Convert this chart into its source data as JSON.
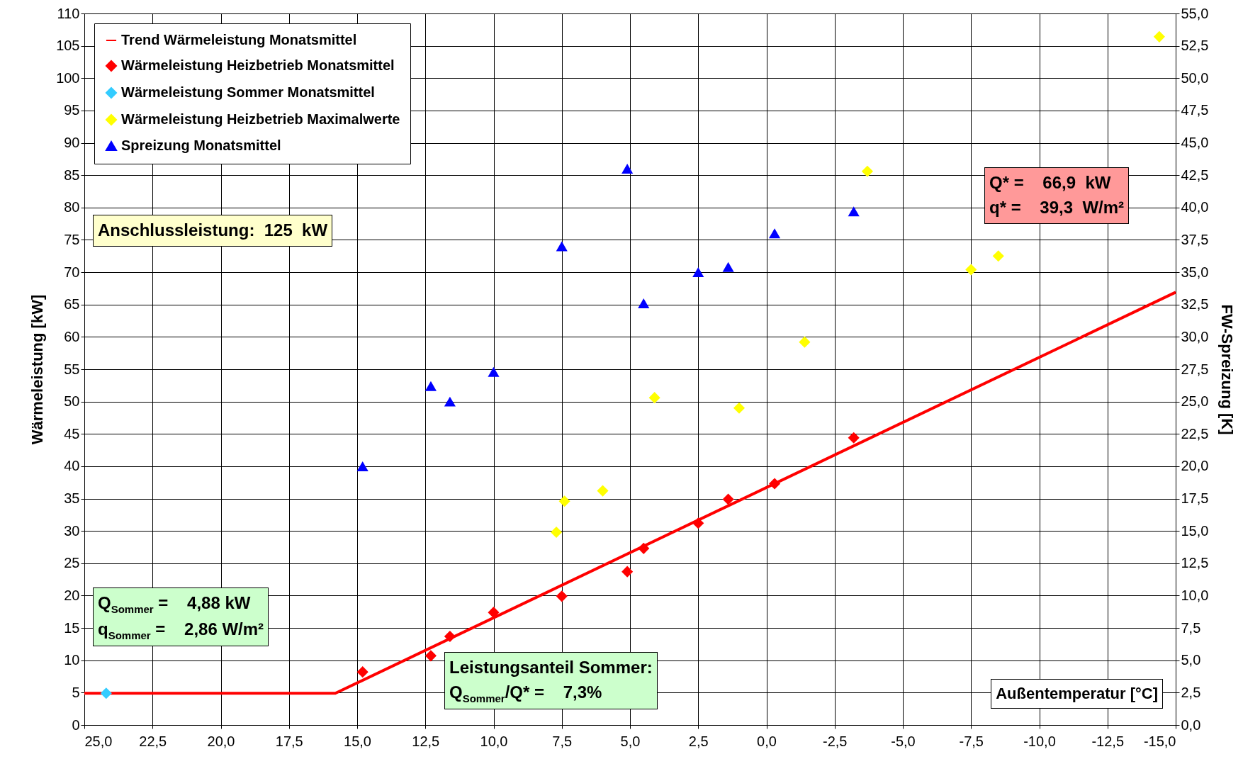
{
  "chart_data": {
    "type": "scatter",
    "xlabel": "Außentemperatur [°C]",
    "ylabel": "Wärmeleistung [kW]",
    "y2label": "FW-Spreizung [K]",
    "xlim": [
      25,
      -15
    ],
    "xticks": [
      {
        "value": 25,
        "label": "25,0"
      },
      {
        "value": 22.5,
        "label": "22,5"
      },
      {
        "value": 20,
        "label": "20,0"
      },
      {
        "value": 17.5,
        "label": "17,5"
      },
      {
        "value": 15,
        "label": "15,0"
      },
      {
        "value": 12.5,
        "label": "12,5"
      },
      {
        "value": 10,
        "label": "10,0"
      },
      {
        "value": 7.5,
        "label": "7,5"
      },
      {
        "value": 5,
        "label": "5,0"
      },
      {
        "value": 2.5,
        "label": "2,5"
      },
      {
        "value": 0,
        "label": "0,0"
      },
      {
        "value": -2.5,
        "label": "-2,5"
      },
      {
        "value": -5,
        "label": "-5,0"
      },
      {
        "value": -7.5,
        "label": "-7,5"
      },
      {
        "value": -10,
        "label": "-10,0"
      },
      {
        "value": -12.5,
        "label": "-12,5"
      },
      {
        "value": -15,
        "label": "-15,0"
      }
    ],
    "ylim": [
      0,
      110
    ],
    "yticks": [
      0,
      5,
      10,
      15,
      20,
      25,
      30,
      35,
      40,
      45,
      50,
      55,
      60,
      65,
      70,
      75,
      80,
      85,
      90,
      95,
      100,
      105,
      110
    ],
    "y2lim": [
      0,
      55
    ],
    "y2ticks": [
      {
        "value": 0,
        "label": "0,0"
      },
      {
        "value": 2.5,
        "label": "2,5"
      },
      {
        "value": 5,
        "label": "5,0"
      },
      {
        "value": 7.5,
        "label": "7,5"
      },
      {
        "value": 10,
        "label": "10,0"
      },
      {
        "value": 12.5,
        "label": "12,5"
      },
      {
        "value": 15,
        "label": "15,0"
      },
      {
        "value": 17.5,
        "label": "17,5"
      },
      {
        "value": 20,
        "label": "20,0"
      },
      {
        "value": 22.5,
        "label": "22,5"
      },
      {
        "value": 25,
        "label": "25,0"
      },
      {
        "value": 27.5,
        "label": "27,5"
      },
      {
        "value": 30,
        "label": "30,0"
      },
      {
        "value": 32.5,
        "label": "32,5"
      },
      {
        "value": 35,
        "label": "35,0"
      },
      {
        "value": 37.5,
        "label": "37,5"
      },
      {
        "value": 40,
        "label": "40,0"
      },
      {
        "value": 42.5,
        "label": "42,5"
      },
      {
        "value": 45,
        "label": "45,0"
      },
      {
        "value": 47.5,
        "label": "47,5"
      },
      {
        "value": 50,
        "label": "50,0"
      },
      {
        "value": 52.5,
        "label": "52,5"
      },
      {
        "value": 55,
        "label": "55,0"
      }
    ],
    "grid": true,
    "legend": "top left",
    "series": [
      {
        "name": "Trend Wärmeleistung Monatsmittel",
        "type": "line",
        "color": "#ff0000",
        "x": [
          25,
          15.8,
          -15
        ],
        "values": [
          4.9,
          4.9,
          66.9
        ]
      },
      {
        "name": "Wärmeleistung Heizbetrieb Monatsmittel",
        "marker": "diamond",
        "color": "#ff0000",
        "x": [
          14.8,
          12.3,
          11.6,
          10.0,
          7.5,
          5.1,
          4.5,
          2.5,
          1.4,
          -0.3,
          -3.2
        ],
        "values": [
          8.2,
          10.7,
          13.7,
          17.4,
          19.9,
          23.7,
          27.3,
          31.2,
          34.9,
          37.3,
          44.4
        ]
      },
      {
        "name": "Wärmeleistung Sommer Monatsmittel",
        "marker": "diamond",
        "color": "#33ccff",
        "x": [
          24.2
        ],
        "values": [
          4.9
        ]
      },
      {
        "name": "Wärmeleistung Heizbetrieb Maximalwerte",
        "marker": "diamond",
        "color": "#ffff00",
        "x": [
          7.7,
          7.4,
          6.0,
          4.1,
          1.0,
          -1.4,
          -3.7,
          -7.5,
          -8.5,
          -14.4
        ],
        "values": [
          29.8,
          34.6,
          36.2,
          50.6,
          49.0,
          59.2,
          85.6,
          70.4,
          72.5,
          106.4
        ]
      },
      {
        "name": "Spreizung Monatsmittel",
        "marker": "triangle",
        "color": "#0000ff",
        "axis": "y2",
        "x": [
          14.8,
          12.3,
          11.6,
          10.0,
          7.5,
          5.1,
          4.5,
          2.5,
          1.4,
          -0.3,
          -3.2
        ],
        "values": [
          20.0,
          26.2,
          25.0,
          27.3,
          37.0,
          43.0,
          32.6,
          35.0,
          35.4,
          38.0,
          39.7
        ]
      }
    ],
    "annotations": [
      "Anschlussleistung:  125  kW",
      "Q* =    66,9  kW",
      "q* =    39,3  W/m²",
      "Q$_{Sommer}$ =    4,88 kW",
      "q$_{Sommer}$ =    2,86 W/m²",
      "Leistungsanteil Sommer:",
      "Q$_{Sommer}$/Q* =    7,3%"
    ]
  }
}
